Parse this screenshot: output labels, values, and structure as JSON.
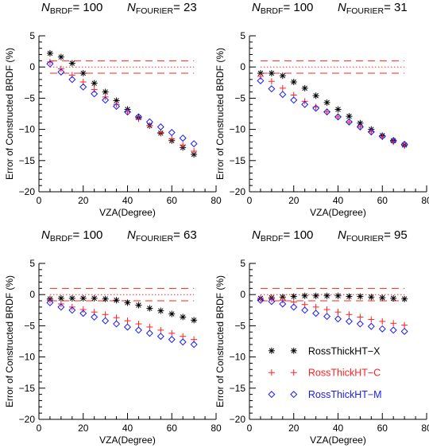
{
  "figure": {
    "xlabel": "VZA(Degree)",
    "ylabel": "Error of Constructed BRDF (%)",
    "xlim": [
      0,
      80
    ],
    "ylim": [
      -20,
      5
    ],
    "xticks": [
      0,
      20,
      40,
      60,
      80
    ],
    "yticks": [
      5,
      0,
      -5,
      -10,
      -15,
      -20
    ],
    "colors": {
      "X": "#000000",
      "C": "#ff2020",
      "M": "#1a1aff"
    }
  },
  "legend": [
    {
      "marker": "asterisk",
      "label": "RossThickHT−X",
      "color": "#000000"
    },
    {
      "marker": "plus",
      "label": "RossThickHT−C",
      "color": "#ff2020"
    },
    {
      "marker": "diamond",
      "label": "RossThickHT−M",
      "color": "#1a1aff"
    }
  ],
  "chart_data": [
    {
      "type": "scatter",
      "title": {
        "brdf_sym": "N",
        "brdf_sub": "BRDF",
        "brdf_val": "= 100",
        "fourier_sym": "N",
        "fourier_sub": "FOURIER",
        "fourier_val": "= 23"
      },
      "x": [
        5,
        10,
        15,
        20,
        25,
        30,
        35,
        40,
        45,
        50,
        55,
        60,
        65,
        70
      ],
      "series": [
        {
          "key": "X",
          "marker": "asterisk",
          "values": [
            2.2,
            1.6,
            0.6,
            -1.0,
            -2.6,
            -4.0,
            -5.4,
            -6.8,
            -8.1,
            -9.4,
            -10.6,
            -11.8,
            -12.9,
            -14.0
          ]
        },
        {
          "key": "C",
          "marker": "plus",
          "values": [
            0.8,
            -0.3,
            -1.3,
            -2.4,
            -3.6,
            -4.8,
            -6.0,
            -7.2,
            -8.3,
            -9.4,
            -10.5,
            -11.5,
            -12.5,
            -13.5
          ]
        },
        {
          "key": "M",
          "marker": "diamond",
          "values": [
            0.5,
            -0.8,
            -2.0,
            -3.2,
            -4.3,
            -5.3,
            -6.3,
            -7.2,
            -8.0,
            -8.8,
            -9.6,
            -10.5,
            -11.4,
            -12.3
          ]
        }
      ],
      "ref_lines": {
        "dashed": [
          1.0,
          -1.0
        ],
        "dotted": 0
      }
    },
    {
      "type": "scatter",
      "title": {
        "brdf_sym": "N",
        "brdf_sub": "BRDF",
        "brdf_val": "= 100",
        "fourier_sym": "N",
        "fourier_sub": "FOURIER",
        "fourier_val": "= 31"
      },
      "x": [
        5,
        10,
        15,
        20,
        25,
        30,
        35,
        40,
        45,
        50,
        55,
        60,
        65,
        70
      ],
      "series": [
        {
          "key": "X",
          "marker": "asterisk",
          "values": [
            -1.0,
            -1.0,
            -1.4,
            -2.4,
            -3.4,
            -4.6,
            -5.7,
            -6.8,
            -7.9,
            -9.0,
            -10.0,
            -11.0,
            -11.8,
            -12.5
          ]
        },
        {
          "key": "C",
          "marker": "plus",
          "values": [
            -1.5,
            -2.3,
            -3.4,
            -4.5,
            -5.5,
            -6.4,
            -7.2,
            -8.0,
            -8.8,
            -9.6,
            -10.4,
            -11.2,
            -12.0,
            -12.6
          ]
        },
        {
          "key": "M",
          "marker": "diamond",
          "values": [
            -2.2,
            -3.5,
            -4.4,
            -5.3,
            -6.0,
            -6.6,
            -7.2,
            -8.0,
            -8.8,
            -9.6,
            -10.4,
            -11.1,
            -11.8,
            -12.4
          ]
        }
      ],
      "ref_lines": {
        "dashed": [
          1.0,
          -1.0
        ],
        "dotted": 0
      }
    },
    {
      "type": "scatter",
      "title": {
        "brdf_sym": "N",
        "brdf_sub": "BRDF",
        "brdf_val": "= 100",
        "fourier_sym": "N",
        "fourier_sub": "FOURIER",
        "fourier_val": "= 63"
      },
      "x": [
        5,
        10,
        15,
        20,
        25,
        30,
        35,
        40,
        45,
        50,
        55,
        60,
        65,
        70
      ],
      "series": [
        {
          "key": "X",
          "marker": "asterisk",
          "values": [
            -0.7,
            -0.6,
            -0.6,
            -0.6,
            -0.6,
            -0.7,
            -0.9,
            -1.3,
            -1.7,
            -2.2,
            -2.6,
            -3.1,
            -3.6,
            -4.1
          ]
        },
        {
          "key": "C",
          "marker": "plus",
          "values": [
            -0.9,
            -1.5,
            -2.0,
            -2.4,
            -2.8,
            -3.2,
            -3.7,
            -4.2,
            -4.7,
            -5.2,
            -5.7,
            -6.2,
            -6.7,
            -7.2
          ]
        },
        {
          "key": "M",
          "marker": "diamond",
          "values": [
            -1.3,
            -2.0,
            -2.5,
            -3.0,
            -3.6,
            -4.2,
            -4.7,
            -5.2,
            -5.7,
            -6.2,
            -6.7,
            -7.2,
            -7.6,
            -8.0
          ]
        }
      ],
      "ref_lines": {
        "dashed": [
          1.0,
          -1.0
        ],
        "dotted": 0
      }
    },
    {
      "type": "scatter",
      "title": {
        "brdf_sym": "N",
        "brdf_sub": "BRDF",
        "brdf_val": "= 100",
        "fourier_sym": "N",
        "fourier_sub": "FOURIER",
        "fourier_val": "= 95"
      },
      "x": [
        5,
        10,
        15,
        20,
        25,
        30,
        35,
        40,
        45,
        50,
        55,
        60,
        65,
        70
      ],
      "series": [
        {
          "key": "X",
          "marker": "asterisk",
          "values": [
            -0.6,
            -0.5,
            -0.4,
            -0.3,
            -0.2,
            -0.2,
            -0.2,
            -0.2,
            -0.3,
            -0.3,
            -0.4,
            -0.5,
            -0.6,
            -0.7
          ]
        },
        {
          "key": "C",
          "marker": "plus",
          "values": [
            -0.6,
            -0.7,
            -0.9,
            -1.2,
            -1.6,
            -2.0,
            -2.4,
            -2.8,
            -3.2,
            -3.6,
            -4.0,
            -4.3,
            -4.6,
            -4.9
          ]
        },
        {
          "key": "M",
          "marker": "diamond",
          "values": [
            -0.9,
            -1.1,
            -1.5,
            -2.0,
            -2.5,
            -3.0,
            -3.5,
            -3.9,
            -4.3,
            -4.7,
            -5.1,
            -5.5,
            -5.7,
            -5.9
          ]
        }
      ],
      "ref_lines": {
        "dashed": [
          1.0,
          -1.0
        ],
        "dotted": 0
      }
    }
  ]
}
